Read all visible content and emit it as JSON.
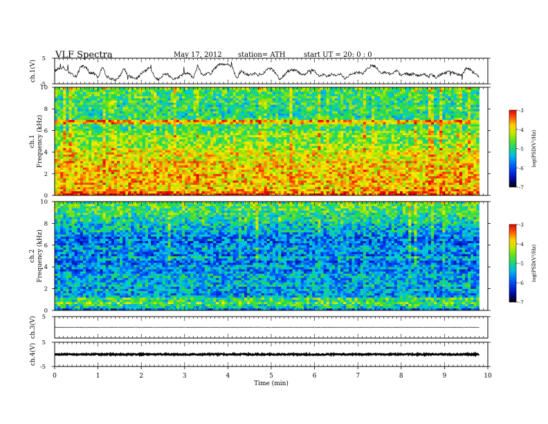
{
  "header": {
    "title": "VLF  Spectra",
    "date": "May 17, 2012",
    "station": "station= ATH",
    "start": "start  UT  =   20: 0  : 0"
  },
  "chart_data": [
    {
      "id": "ch1_waveform",
      "type": "line",
      "ylabel": "ch.1(V)",
      "ylim": [
        -5,
        5
      ],
      "yticks": [
        "5",
        "-5"
      ],
      "xlim": [
        0,
        10
      ],
      "color": "#000000",
      "x": [
        0.0,
        0.1,
        0.2,
        0.3,
        0.4,
        0.5,
        0.6,
        0.7,
        0.8,
        0.9,
        1.0,
        1.1,
        1.2,
        1.3,
        1.4,
        1.5,
        1.6,
        1.7,
        1.8,
        1.9,
        2.0,
        2.1,
        2.2,
        2.3,
        2.4,
        2.5,
        2.6,
        2.7,
        2.8,
        2.9,
        3.0,
        3.1,
        3.2,
        3.3,
        3.4,
        3.5,
        3.6,
        3.7,
        3.8,
        3.9,
        4.0,
        4.1,
        4.2,
        4.3,
        4.4,
        4.5,
        4.6,
        4.7,
        4.8,
        4.9,
        5.0,
        5.1,
        5.2,
        5.3,
        5.4,
        5.5,
        5.6,
        5.7,
        5.8,
        5.9,
        6.0,
        6.1,
        6.2,
        6.3,
        6.4,
        6.5,
        6.6,
        6.7,
        6.8,
        6.9,
        7.0,
        7.1,
        7.2,
        7.3,
        7.4,
        7.5,
        7.6,
        7.7,
        7.8,
        7.9,
        8.0,
        8.1,
        8.2,
        8.3,
        8.4,
        8.5,
        8.6,
        8.7,
        8.8,
        8.9,
        9.0,
        9.1,
        9.2,
        9.3,
        9.4,
        9.5,
        9.6,
        9.7,
        9.8
      ],
      "y": [
        0,
        1,
        1.5,
        0,
        -1.5,
        -2,
        1.5,
        2,
        -0.5,
        -1,
        -2.5,
        1.5,
        -2,
        -3,
        -3.5,
        -2,
        1,
        -2,
        -2.5,
        -3,
        -1,
        0,
        1.5,
        -2,
        -3.5,
        -1.5,
        -1,
        -3,
        -3,
        -2,
        -1,
        -1,
        -2.5,
        2,
        -1.5,
        -1,
        -1,
        1,
        2.5,
        2.5,
        2.5,
        1.5,
        -3,
        0,
        -1,
        -1.5,
        -1,
        -1.5,
        -1,
        0.5,
        1,
        -1,
        -3.5,
        -1.5,
        0,
        0.5,
        0,
        -1.5,
        -1,
        0.5,
        0,
        -2,
        -1.5,
        -2,
        -1,
        -1.5,
        -1,
        -3,
        -1.5,
        -1,
        -0.5,
        -1,
        0.5,
        2,
        2,
        -0.5,
        -0.5,
        -1,
        -1,
        0,
        -2,
        -1,
        -1.5,
        -1,
        -2,
        -1,
        -2,
        -1.5,
        -2.5,
        -1.5,
        -1,
        0,
        -0.5,
        -1.5,
        -1.5,
        1,
        0.5,
        -1,
        -2.5
      ]
    },
    {
      "id": "ch1_spectrogram",
      "type": "heatmap",
      "ylabel": "ch.1",
      "ylabel2": "Frequency  (kHz)",
      "ylim": [
        0,
        10
      ],
      "yticks": [
        "0",
        "2",
        "4",
        "6",
        "8",
        "10"
      ],
      "xlim": [
        0,
        9.8
      ],
      "colorbar": {
        "label": "log(PSD(V²/Hz)",
        "range": [
          -7,
          -3
        ],
        "ticks": [
          "-3",
          "-4",
          "-5",
          "-6",
          "-7"
        ]
      },
      "mean_log_psd_by_frequency_bin": [
        -3.2,
        -3.5,
        -3.8,
        -3.8,
        -4.0,
        -3.8,
        -3.8,
        -3.9,
        -3.8,
        -3.8,
        -3.8,
        -3.9,
        -3.9,
        -3.8,
        -4.0,
        -3.8,
        -4.0,
        -4.2,
        -3.9,
        -4.0,
        -4.1,
        -4.3,
        -4.5,
        -4.4,
        -4.5,
        -4.6,
        -4.6,
        -4.3,
        -4.5,
        -4.6,
        -4.9,
        -4.9,
        -4.8,
        -3.9,
        -3.7,
        -4.9,
        -5.0,
        -5.0,
        -5.0,
        -5.0,
        -4.8,
        -5.0,
        -4.9,
        -4.9,
        -5.0,
        -4.8,
        -4.8,
        -4.9,
        -4.8,
        -4.6
      ]
    },
    {
      "id": "ch2_spectrogram",
      "type": "heatmap",
      "ylabel": "ch.2",
      "ylabel2": "Frequency  (kHz)",
      "ylim": [
        0,
        10
      ],
      "yticks": [
        "0",
        "2",
        "4",
        "6",
        "8",
        "10"
      ],
      "xlim": [
        0,
        9.8
      ],
      "colorbar": {
        "label": "log(PSD(V²/Hz)",
        "range": [
          -7,
          -3
        ],
        "ticks": [
          "-3",
          "-4",
          "-5",
          "-6",
          "-7"
        ]
      },
      "mean_log_psd_by_frequency_bin": [
        -5.8,
        -5.2,
        -5.0,
        -4.6,
        -5.0,
        -4.8,
        -5.4,
        -5.6,
        -5.6,
        -5.4,
        -5.6,
        -5.3,
        -5.5,
        -5.5,
        -5.6,
        -5.4,
        -5.4,
        -5.6,
        -5.8,
        -5.6,
        -5.5,
        -5.8,
        -5.9,
        -5.6,
        -5.4,
        -5.9,
        -5.7,
        -5.7,
        -5.5,
        -5.6,
        -5.8,
        -5.9,
        -5.7,
        -5.9,
        -5.6,
        -5.6,
        -5.4,
        -5.4,
        -5.3,
        -5.3,
        -5.1,
        -5.0,
        -5.1,
        -5.0,
        -4.9,
        -4.9,
        -4.8,
        -4.8,
        -4.7,
        -4.7
      ]
    },
    {
      "id": "ch3_waveform",
      "type": "line",
      "ylabel": "ch.3(V)",
      "ylim": [
        -5,
        5
      ],
      "yticks": [
        "5"
      ],
      "xlim": [
        0,
        10
      ],
      "color": "#000000",
      "x": [
        0,
        9.8
      ],
      "y": [
        0,
        0
      ]
    },
    {
      "id": "ch4_waveform",
      "type": "line",
      "ylabel": "ch.4(V)",
      "ylim": [
        -5,
        5
      ],
      "yticks": [
        "5",
        "-5"
      ],
      "xlim": [
        0,
        10
      ],
      "xlabel": "Time  (min)",
      "xticks": [
        "0",
        "1",
        "2",
        "3",
        "4",
        "5",
        "6",
        "7",
        "8",
        "9",
        "10"
      ],
      "color": "#000000",
      "x": [
        0,
        9.8
      ],
      "y": [
        0,
        0
      ]
    }
  ]
}
